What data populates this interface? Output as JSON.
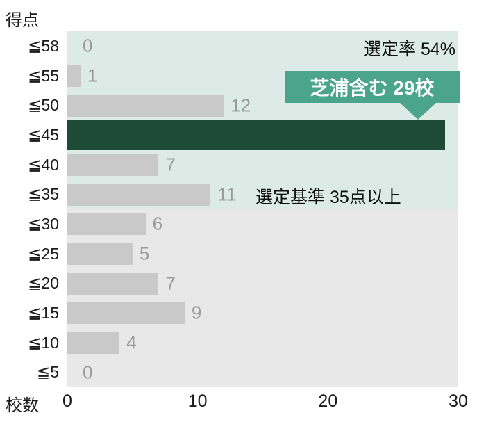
{
  "chart_data": {
    "type": "bar",
    "orientation": "horizontal",
    "ylabel": "得点",
    "xlabel": "校数",
    "categories": [
      "≦58",
      "≦55",
      "≦50",
      "≦45",
      "≦40",
      "≦35",
      "≦30",
      "≦25",
      "≦20",
      "≦15",
      "≦10",
      "≦5"
    ],
    "values": [
      0,
      1,
      12,
      29,
      7,
      11,
      6,
      5,
      7,
      9,
      4,
      0
    ],
    "highlight_index": 3,
    "show_value_label": [
      true,
      true,
      true,
      false,
      true,
      true,
      true,
      true,
      true,
      true,
      true,
      true
    ],
    "xlim": [
      0,
      30
    ],
    "x_ticks": [
      0,
      10,
      20,
      30
    ],
    "grid": false,
    "legend_position": "none",
    "annotations": {
      "selection_rate": "選定率 54%",
      "callout": "芝浦含む 29校",
      "criterion": "選定基準 35点以上"
    },
    "colors": {
      "bar": "#c9c9c9",
      "highlight_bar": "#1e4b38",
      "callout_bg": "#4ba58c",
      "bg_upper_rows": "#dcebe5",
      "bg_lower_rows": "#e8e8e8",
      "value_label": "#9b9b9b",
      "axis_text": "#1b1b1b"
    }
  }
}
